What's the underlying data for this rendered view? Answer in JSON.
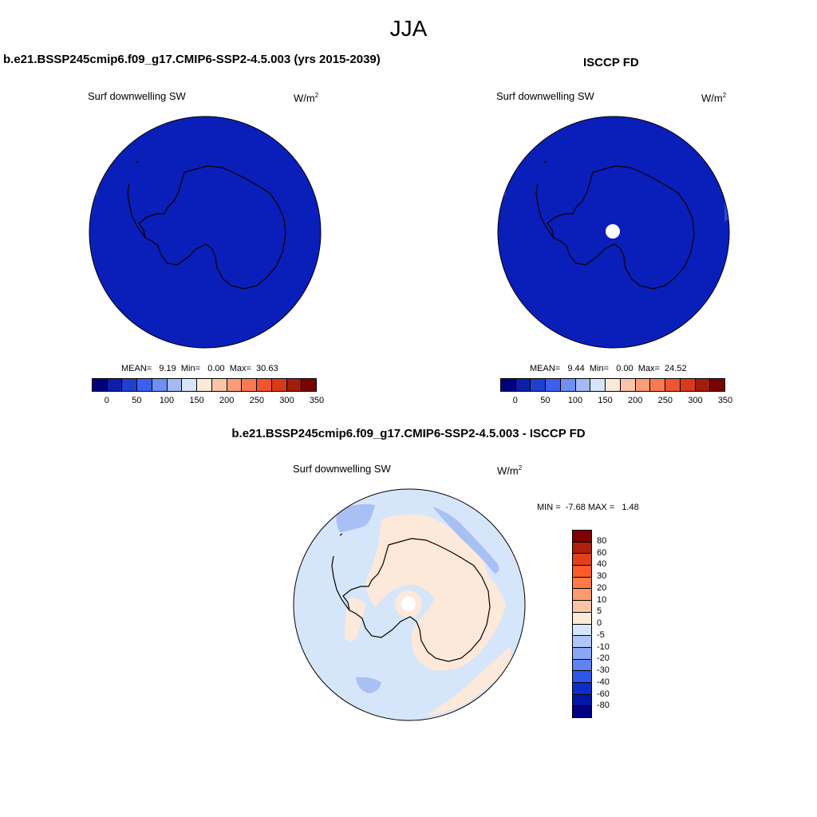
{
  "figure": {
    "season": "JJA"
  },
  "panel_model": {
    "title": "b.e21.BSSP245cmip6.f09_g17.CMIP6-SSP2-4.5.003 (yrs 2015-2039)",
    "variable": "Surf downwelling SW",
    "units_base": "W/m",
    "units_exp": "2",
    "stats": "MEAN=   9.19  Min=   0.00  Max=  30.63"
  },
  "panel_obs": {
    "title": "ISCCP FD",
    "variable": "Surf downwelling SW",
    "units_base": "W/m",
    "units_exp": "2",
    "stats": "MEAN=   9.44  Min=   0.00  Max=  24.52"
  },
  "panel_diff": {
    "title": "b.e21.BSSP245cmip6.f09_g17.CMIP6-SSP2-4.5.003 - ISCCP FD",
    "variable": "Surf downwelling SW",
    "units_base": "W/m",
    "units_exp": "2",
    "stats": "MIN =  -7.68 MAX =   1.48"
  },
  "colorbar_abs": {
    "colors": [
      "#00007f",
      "#0d1fa8",
      "#1f3fd1",
      "#3d5ff0",
      "#6f8ff5",
      "#a3baf5",
      "#d6e6fa",
      "#fde9d9",
      "#fcc4a8",
      "#fc9c78",
      "#f97a52",
      "#f0552f",
      "#d93a1c",
      "#a21d0c",
      "#790503"
    ],
    "tick_labels": [
      "0",
      "50",
      "100",
      "150",
      "200",
      "250",
      "300",
      "350"
    ]
  },
  "colorbar_diff": {
    "colors": [
      "#7f0000",
      "#b0200a",
      "#e0401a",
      "#ff5a2a",
      "#ff7a45",
      "#ff9a70",
      "#fdc4a3",
      "#fde9d9",
      "#d6e6fa",
      "#b0c6f8",
      "#8aa6f5",
      "#5f84f0",
      "#2d56e8",
      "#0d2ccc",
      "#0018a8",
      "#000080"
    ],
    "tick_labels": [
      "80",
      "60",
      "40",
      "30",
      "20",
      "10",
      "5",
      "0",
      "-5",
      "-10",
      "-20",
      "-30",
      "-40",
      "-60",
      "-80"
    ]
  },
  "map_colors": {
    "abs_field": "#0a1fb9",
    "abs_edge": "#2a47d4",
    "diff_background": "#d6e6fa",
    "diff_positive": "#fde9d9",
    "diff_negative": "#a9c0f5",
    "missing": "#ffffff",
    "coastline": "#000000"
  }
}
